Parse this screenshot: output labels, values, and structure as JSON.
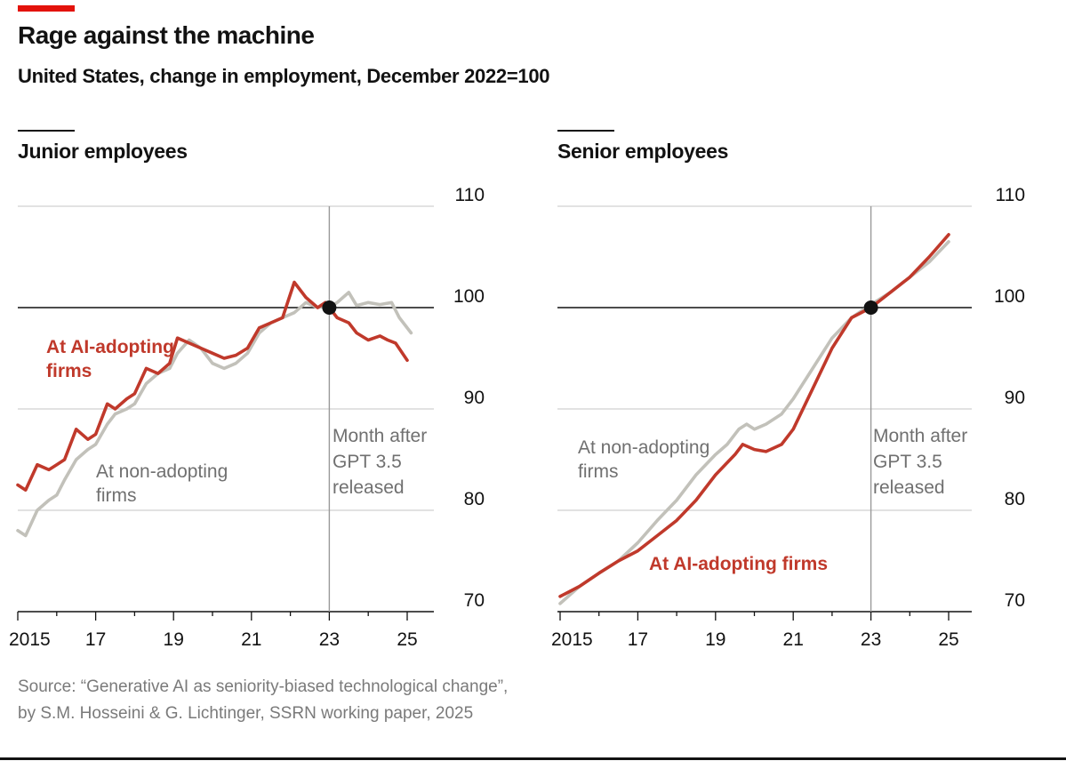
{
  "header": {
    "title": "Rage against the machine",
    "subtitle": "United States, change in employment, December 2022=100"
  },
  "colors": {
    "accent": "#e3120b",
    "adopting": "#c0392b",
    "non_adopting": "#c2c1ba",
    "reference": "#121212",
    "grid": "#d0d0d0"
  },
  "chart_data": [
    {
      "type": "line",
      "title": "Junior employees",
      "x_ticks": [
        2015,
        2017,
        2019,
        2021,
        2023,
        2025
      ],
      "x_tick_labels": [
        "2015",
        "17",
        "19",
        "21",
        "23",
        "25"
      ],
      "xlim": [
        2015,
        2025.3
      ],
      "ylim": [
        70,
        110
      ],
      "y_ticks": [
        70,
        80,
        90,
        100,
        110
      ],
      "y_tick_labels": [
        "70",
        "80",
        "90",
        "100",
        "110"
      ],
      "grid": true,
      "vline": {
        "x": 2023,
        "label": [
          "Month after",
          "GPT 3.5",
          "released"
        ]
      },
      "reference_point": {
        "x": 2023,
        "y": 100
      },
      "series": [
        {
          "name": "At non-adopting firms",
          "label": [
            "At non-adopting",
            "firms"
          ],
          "color": "#c2c1ba",
          "points": [
            [
              2015.0,
              78.0
            ],
            [
              2015.2,
              77.5
            ],
            [
              2015.5,
              80.0
            ],
            [
              2015.8,
              81.0
            ],
            [
              2016.0,
              81.5
            ],
            [
              2016.2,
              83.0
            ],
            [
              2016.5,
              85.0
            ],
            [
              2016.8,
              86.0
            ],
            [
              2017.0,
              86.5
            ],
            [
              2017.3,
              88.5
            ],
            [
              2017.5,
              89.5
            ],
            [
              2017.8,
              90.0
            ],
            [
              2018.0,
              90.5
            ],
            [
              2018.3,
              92.5
            ],
            [
              2018.6,
              93.5
            ],
            [
              2018.9,
              94.0
            ],
            [
              2019.1,
              95.5
            ],
            [
              2019.4,
              96.8
            ],
            [
              2019.7,
              96.0
            ],
            [
              2020.0,
              94.5
            ],
            [
              2020.3,
              94.0
            ],
            [
              2020.6,
              94.5
            ],
            [
              2020.9,
              95.5
            ],
            [
              2021.2,
              97.5
            ],
            [
              2021.5,
              98.5
            ],
            [
              2021.8,
              99.0
            ],
            [
              2022.1,
              99.5
            ],
            [
              2022.4,
              100.5
            ],
            [
              2022.7,
              100.0
            ],
            [
              2022.9,
              100.2
            ],
            [
              2023.0,
              100.0
            ],
            [
              2023.2,
              100.5
            ],
            [
              2023.5,
              101.5
            ],
            [
              2023.7,
              100.2
            ],
            [
              2024.0,
              100.5
            ],
            [
              2024.3,
              100.3
            ],
            [
              2024.6,
              100.5
            ],
            [
              2024.8,
              99.0
            ],
            [
              2025.1,
              97.5
            ]
          ]
        },
        {
          "name": "At AI-adopting firms",
          "label": [
            "At AI-adopting",
            "firms"
          ],
          "color": "#c0392b",
          "points": [
            [
              2015.0,
              82.5
            ],
            [
              2015.2,
              82.0
            ],
            [
              2015.5,
              84.5
            ],
            [
              2015.8,
              84.0
            ],
            [
              2016.0,
              84.5
            ],
            [
              2016.2,
              85.0
            ],
            [
              2016.5,
              88.0
            ],
            [
              2016.8,
              87.0
            ],
            [
              2017.0,
              87.5
            ],
            [
              2017.3,
              90.5
            ],
            [
              2017.5,
              90.0
            ],
            [
              2017.8,
              91.0
            ],
            [
              2018.0,
              91.5
            ],
            [
              2018.3,
              94.0
            ],
            [
              2018.6,
              93.5
            ],
            [
              2018.9,
              94.5
            ],
            [
              2019.1,
              97.0
            ],
            [
              2019.4,
              96.5
            ],
            [
              2019.7,
              96.0
            ],
            [
              2020.0,
              95.5
            ],
            [
              2020.3,
              95.0
            ],
            [
              2020.6,
              95.3
            ],
            [
              2020.9,
              96.0
            ],
            [
              2021.2,
              98.0
            ],
            [
              2021.5,
              98.5
            ],
            [
              2021.8,
              99.0
            ],
            [
              2022.1,
              102.5
            ],
            [
              2022.4,
              101.0
            ],
            [
              2022.7,
              100.0
            ],
            [
              2022.9,
              100.5
            ],
            [
              2023.0,
              100.0
            ],
            [
              2023.2,
              99.0
            ],
            [
              2023.5,
              98.5
            ],
            [
              2023.7,
              97.5
            ],
            [
              2024.0,
              96.8
            ],
            [
              2024.3,
              97.2
            ],
            [
              2024.5,
              96.8
            ],
            [
              2024.7,
              96.5
            ],
            [
              2025.0,
              94.8
            ]
          ]
        }
      ]
    },
    {
      "type": "line",
      "title": "Senior employees",
      "x_ticks": [
        2015,
        2017,
        2019,
        2021,
        2023,
        2025
      ],
      "x_tick_labels": [
        "2015",
        "17",
        "19",
        "21",
        "23",
        "25"
      ],
      "xlim": [
        2015,
        2025.3
      ],
      "ylim": [
        70,
        110
      ],
      "y_ticks": [
        70,
        80,
        90,
        100,
        110
      ],
      "y_tick_labels": [
        "70",
        "80",
        "90",
        "100",
        "110"
      ],
      "grid": true,
      "vline": {
        "x": 2023,
        "label": [
          "Month after",
          "GPT 3.5",
          "released"
        ]
      },
      "reference_point": {
        "x": 2023,
        "y": 100
      },
      "series": [
        {
          "name": "At non-adopting firms",
          "label": [
            "At non-adopting",
            "firms"
          ],
          "color": "#c2c1ba",
          "points": [
            [
              2015.0,
              70.8
            ],
            [
              2015.5,
              72.5
            ],
            [
              2016.0,
              73.8
            ],
            [
              2016.5,
              75.0
            ],
            [
              2017.0,
              76.8
            ],
            [
              2017.5,
              79.0
            ],
            [
              2018.0,
              81.0
            ],
            [
              2018.5,
              83.5
            ],
            [
              2019.0,
              85.5
            ],
            [
              2019.3,
              86.5
            ],
            [
              2019.6,
              88.0
            ],
            [
              2019.8,
              88.5
            ],
            [
              2020.0,
              88.0
            ],
            [
              2020.3,
              88.5
            ],
            [
              2020.7,
              89.5
            ],
            [
              2021.0,
              91.0
            ],
            [
              2021.5,
              94.0
            ],
            [
              2022.0,
              97.0
            ],
            [
              2022.5,
              99.0
            ],
            [
              2023.0,
              100.3
            ],
            [
              2023.5,
              101.5
            ],
            [
              2024.0,
              103.0
            ],
            [
              2024.5,
              104.5
            ],
            [
              2025.0,
              106.5
            ]
          ]
        },
        {
          "name": "At AI-adopting firms",
          "label": [
            "At AI-adopting firms"
          ],
          "color": "#c0392b",
          "points": [
            [
              2015.0,
              71.5
            ],
            [
              2015.5,
              72.5
            ],
            [
              2016.0,
              73.8
            ],
            [
              2016.5,
              75.0
            ],
            [
              2017.0,
              76.0
            ],
            [
              2017.5,
              77.5
            ],
            [
              2018.0,
              79.0
            ],
            [
              2018.5,
              81.0
            ],
            [
              2019.0,
              83.5
            ],
            [
              2019.5,
              85.5
            ],
            [
              2019.7,
              86.5
            ],
            [
              2020.0,
              86.0
            ],
            [
              2020.3,
              85.8
            ],
            [
              2020.7,
              86.5
            ],
            [
              2021.0,
              88.0
            ],
            [
              2021.5,
              92.0
            ],
            [
              2022.0,
              96.0
            ],
            [
              2022.5,
              99.0
            ],
            [
              2023.0,
              100.0
            ],
            [
              2023.5,
              101.5
            ],
            [
              2024.0,
              103.0
            ],
            [
              2024.5,
              105.0
            ],
            [
              2025.0,
              107.2
            ]
          ]
        }
      ]
    }
  ],
  "source": {
    "line1": "Source: “Generative AI as seniority-biased technological change”,",
    "line2": "by S.M. Hosseini & G. Lichtinger, SSRN working paper, 2025"
  }
}
